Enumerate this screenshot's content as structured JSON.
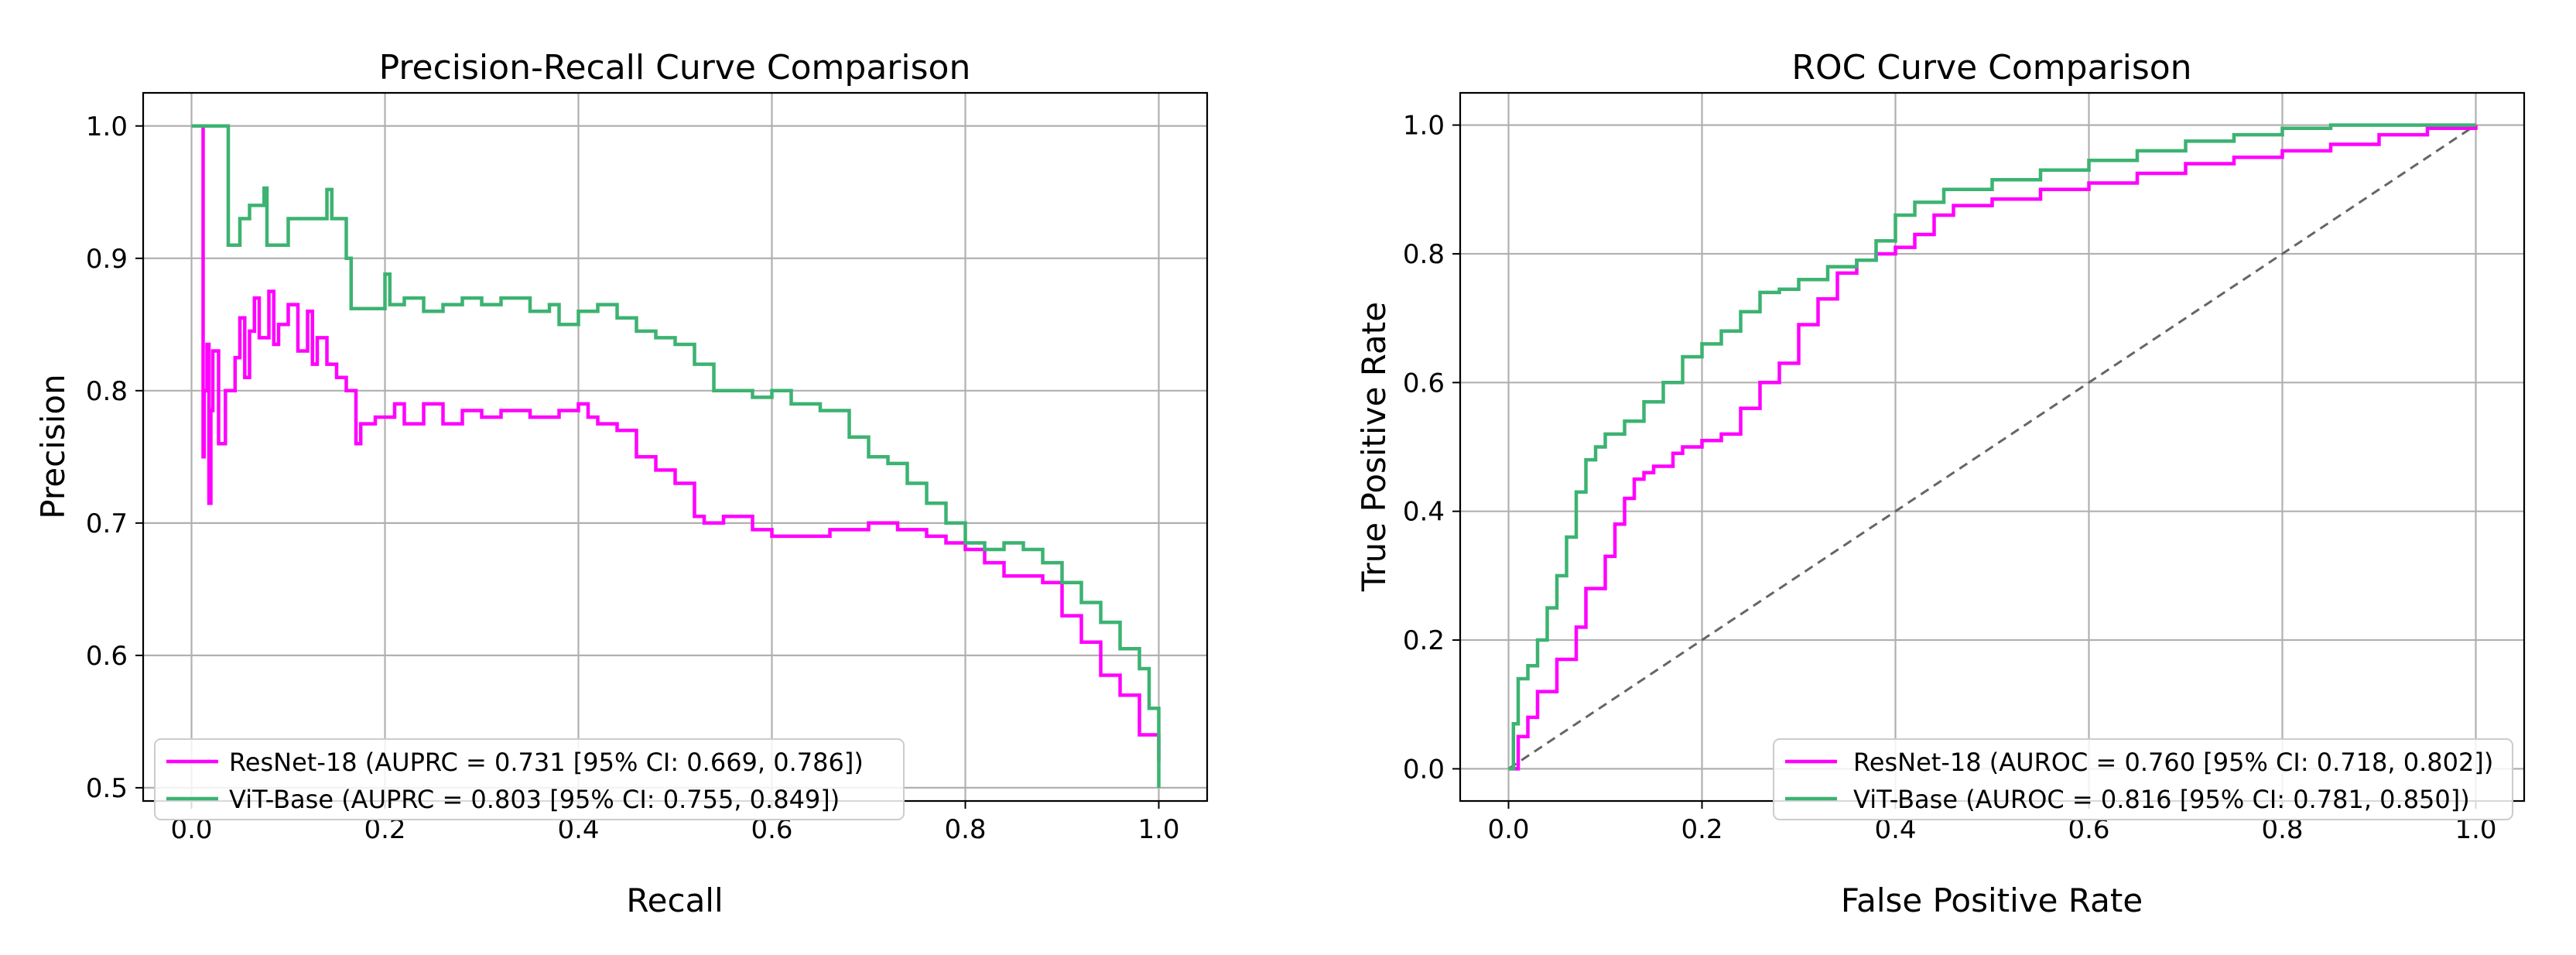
{
  "chart_data": [
    {
      "type": "line",
      "title": "Precision-Recall Curve Comparison",
      "xlabel": "Recall",
      "ylabel": "Precision",
      "xlim": [
        -0.05,
        1.05
      ],
      "ylim": [
        0.49,
        1.025
      ],
      "xticks": [
        0.0,
        0.2,
        0.4,
        0.6,
        0.8,
        1.0
      ],
      "xtick_labels": [
        "0.0",
        "0.2",
        "0.4",
        "0.6",
        "0.8",
        "1.0"
      ],
      "yticks": [
        0.5,
        0.6,
        0.7,
        0.8,
        0.9,
        1.0
      ],
      "ytick_labels": [
        "0.5",
        "0.6",
        "0.7",
        "0.8",
        "0.9",
        "1.0"
      ],
      "grid": true,
      "legend_position": "lower-left",
      "series": [
        {
          "name": "ResNet-18",
          "legend_label": "ResNet-18 (AUPRC = 0.731 [95% CI: 0.669, 0.786])",
          "color": "#ff00ff",
          "x": [
            0.01,
            0.012,
            0.013,
            0.016,
            0.018,
            0.02,
            0.022,
            0.028,
            0.035,
            0.045,
            0.05,
            0.055,
            0.06,
            0.065,
            0.07,
            0.08,
            0.085,
            0.09,
            0.1,
            0.11,
            0.12,
            0.125,
            0.13,
            0.14,
            0.15,
            0.16,
            0.17,
            0.175,
            0.19,
            0.21,
            0.22,
            0.24,
            0.26,
            0.28,
            0.3,
            0.32,
            0.35,
            0.38,
            0.4,
            0.41,
            0.42,
            0.44,
            0.46,
            0.48,
            0.5,
            0.52,
            0.53,
            0.55,
            0.58,
            0.6,
            0.63,
            0.66,
            0.7,
            0.73,
            0.76,
            0.78,
            0.8,
            0.82,
            0.84,
            0.86,
            0.88,
            0.9,
            0.92,
            0.94,
            0.96,
            0.98,
            1.0
          ],
          "y": [
            1.0,
            0.75,
            0.8,
            0.835,
            0.715,
            0.785,
            0.83,
            0.76,
            0.8,
            0.825,
            0.855,
            0.81,
            0.845,
            0.87,
            0.84,
            0.875,
            0.835,
            0.85,
            0.865,
            0.83,
            0.86,
            0.82,
            0.84,
            0.82,
            0.81,
            0.8,
            0.76,
            0.775,
            0.78,
            0.79,
            0.775,
            0.79,
            0.775,
            0.785,
            0.78,
            0.785,
            0.78,
            0.785,
            0.79,
            0.78,
            0.775,
            0.77,
            0.75,
            0.74,
            0.73,
            0.705,
            0.7,
            0.705,
            0.695,
            0.69,
            0.69,
            0.695,
            0.7,
            0.695,
            0.69,
            0.685,
            0.68,
            0.67,
            0.66,
            0.66,
            0.655,
            0.63,
            0.61,
            0.585,
            0.57,
            0.54,
            0.52
          ]
        },
        {
          "name": "ViT-Base",
          "legend_label": "ViT-Base (AUPRC = 0.803 [95% CI: 0.755, 0.849])",
          "color": "#3cb371",
          "x": [
            0.0,
            0.035,
            0.038,
            0.05,
            0.06,
            0.075,
            0.078,
            0.1,
            0.14,
            0.145,
            0.16,
            0.165,
            0.2,
            0.205,
            0.22,
            0.24,
            0.26,
            0.28,
            0.3,
            0.32,
            0.35,
            0.37,
            0.38,
            0.4,
            0.42,
            0.44,
            0.46,
            0.48,
            0.5,
            0.52,
            0.54,
            0.55,
            0.58,
            0.6,
            0.62,
            0.65,
            0.68,
            0.7,
            0.72,
            0.74,
            0.76,
            0.78,
            0.8,
            0.82,
            0.84,
            0.86,
            0.88,
            0.9,
            0.92,
            0.94,
            0.96,
            0.98,
            0.99,
            1.0
          ],
          "y": [
            1.0,
            1.0,
            0.91,
            0.93,
            0.94,
            0.953,
            0.91,
            0.93,
            0.952,
            0.93,
            0.9,
            0.862,
            0.888,
            0.865,
            0.87,
            0.86,
            0.865,
            0.87,
            0.865,
            0.87,
            0.86,
            0.865,
            0.85,
            0.86,
            0.865,
            0.855,
            0.845,
            0.84,
            0.835,
            0.82,
            0.8,
            0.8,
            0.795,
            0.8,
            0.79,
            0.785,
            0.765,
            0.75,
            0.745,
            0.73,
            0.715,
            0.7,
            0.685,
            0.68,
            0.685,
            0.68,
            0.67,
            0.655,
            0.64,
            0.625,
            0.605,
            0.59,
            0.56,
            0.5
          ]
        }
      ]
    },
    {
      "type": "line",
      "title": "ROC Curve Comparison",
      "xlabel": "False Positive Rate",
      "ylabel": "True Positive Rate",
      "xlim": [
        -0.05,
        1.05
      ],
      "ylim": [
        -0.05,
        1.05
      ],
      "xticks": [
        0.0,
        0.2,
        0.4,
        0.6,
        0.8,
        1.0
      ],
      "xtick_labels": [
        "0.0",
        "0.2",
        "0.4",
        "0.6",
        "0.8",
        "1.0"
      ],
      "yticks": [
        0.0,
        0.2,
        0.4,
        0.6,
        0.8,
        1.0
      ],
      "ytick_labels": [
        "0.0",
        "0.2",
        "0.4",
        "0.6",
        "0.8",
        "1.0"
      ],
      "grid": true,
      "legend_position": "lower-right",
      "reference_line": {
        "x": [
          0.0,
          1.0
        ],
        "y": [
          0.0,
          1.0
        ],
        "color": "#666666",
        "style": "dashed"
      },
      "series": [
        {
          "name": "ResNet-18",
          "legend_label": "ResNet-18 (AUROC = 0.760 [95% CI: 0.718, 0.802])",
          "color": "#ff00ff",
          "x": [
            0.0,
            0.01,
            0.02,
            0.03,
            0.05,
            0.07,
            0.08,
            0.1,
            0.11,
            0.12,
            0.13,
            0.14,
            0.15,
            0.17,
            0.18,
            0.2,
            0.22,
            0.24,
            0.26,
            0.28,
            0.3,
            0.32,
            0.34,
            0.36,
            0.38,
            0.4,
            0.42,
            0.44,
            0.46,
            0.5,
            0.55,
            0.6,
            0.65,
            0.7,
            0.75,
            0.8,
            0.85,
            0.9,
            0.95,
            1.0
          ],
          "y": [
            0.0,
            0.05,
            0.08,
            0.12,
            0.17,
            0.22,
            0.28,
            0.33,
            0.38,
            0.42,
            0.45,
            0.46,
            0.47,
            0.49,
            0.5,
            0.51,
            0.52,
            0.56,
            0.6,
            0.63,
            0.69,
            0.73,
            0.77,
            0.79,
            0.8,
            0.81,
            0.83,
            0.86,
            0.875,
            0.885,
            0.9,
            0.91,
            0.925,
            0.94,
            0.95,
            0.96,
            0.97,
            0.985,
            0.995,
            1.0
          ]
        },
        {
          "name": "ViT-Base",
          "legend_label": "ViT-Base (AUROC = 0.816 [95% CI: 0.781, 0.850])",
          "color": "#3cb371",
          "x": [
            0.0,
            0.005,
            0.01,
            0.02,
            0.03,
            0.04,
            0.05,
            0.06,
            0.07,
            0.08,
            0.09,
            0.1,
            0.12,
            0.14,
            0.16,
            0.18,
            0.2,
            0.22,
            0.24,
            0.26,
            0.28,
            0.3,
            0.33,
            0.36,
            0.38,
            0.4,
            0.42,
            0.45,
            0.5,
            0.55,
            0.6,
            0.65,
            0.7,
            0.75,
            0.8,
            0.85,
            0.9,
            1.0
          ],
          "y": [
            0.0,
            0.07,
            0.14,
            0.16,
            0.2,
            0.25,
            0.3,
            0.36,
            0.43,
            0.48,
            0.5,
            0.52,
            0.54,
            0.57,
            0.6,
            0.64,
            0.66,
            0.68,
            0.71,
            0.74,
            0.745,
            0.76,
            0.78,
            0.79,
            0.82,
            0.86,
            0.88,
            0.9,
            0.915,
            0.93,
            0.945,
            0.96,
            0.975,
            0.985,
            0.995,
            1.0,
            1.0,
            1.0
          ]
        }
      ]
    }
  ]
}
